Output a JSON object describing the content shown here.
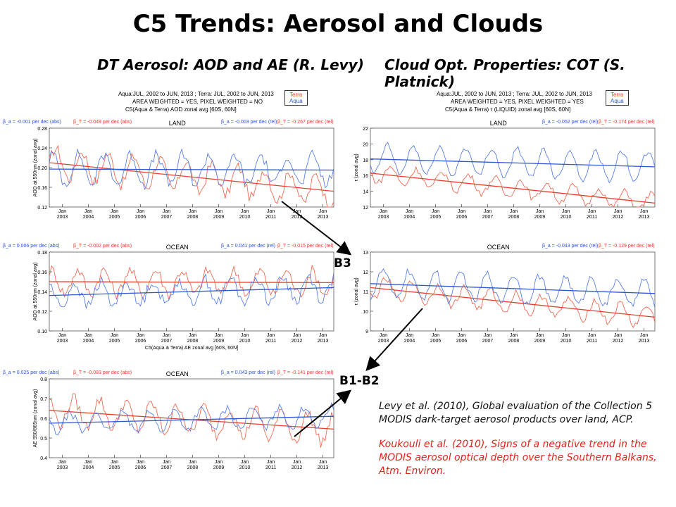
{
  "title": "C5 Trends: Aerosol and Clouds",
  "left_heading": "DT Aerosol: AOD and AE (R. Levy)",
  "right_heading": "Cloud Opt. Properties: COT (S. Platnick)",
  "left_header": {
    "line1": "Aqua:JUL, 2002 to JUN, 2013 ; Terra: JUL, 2002 to JUN, 2013",
    "line2": "AREA WEIGHTED = YES, PIXEL WEIGHTED = NO",
    "line3": "C5(Aqua & Terra) AOD zonal avg [60S, 60N]"
  },
  "right_header": {
    "line1": "Aqua:JUL, 2002 to JUN, 2013 ; Terra: JUL, 2002 to JUN, 2013",
    "line2": "AREA WEIGHTED = YES, PIXEL WEIGHTED = YES",
    "line3": "C5(Aqua & Terra) τ (LIQUID) zonal avg [60S, 60N]"
  },
  "legend": {
    "terra": "Terra",
    "aqua": "Aqua"
  },
  "annotations": {
    "b3": "B3",
    "b1b2": "B1-B2"
  },
  "references": {
    "ref1": "Levy et al. (2010), Global evaluation of the Collection 5 MODIS dark-target aerosol products over land, ACP.",
    "ref2": "Koukouli et al. (2010), Signs of a negative trend in the MODIS aerosol optical depth over the Southern Balkans, Atm. Environ."
  },
  "colors": {
    "terra": "#f06a52",
    "aqua": "#5b7fe8",
    "terra_trend": "#e8402c",
    "aqua_trend": "#2b56d6"
  },
  "chart_data": [
    {
      "id": "aod-land",
      "type": "line",
      "panel_label": "LAND",
      "ylabel": "AOD at 550nm (zonal avg)",
      "ylim": [
        0.12,
        0.28
      ],
      "yticks": [
        "0.12",
        "0.16",
        "0.20",
        "0.24",
        "0.28"
      ],
      "xticks": [
        "Jan 2003",
        "Jan 2004",
        "Jan 2005",
        "Jan 2006",
        "Jan 2007",
        "Jan 2008",
        "Jan 2009",
        "Jan 2010",
        "Jan 2011",
        "Jan 2012",
        "Jan 2013"
      ],
      "stats": {
        "b_abs": "β_a = -0.001 per dec (abs)",
        "t_abs": "β_T = -0.049 per dec (abs)",
        "a_rel": "β_a = -0.003 per dec (rel)",
        "t_rel": "β_T = -0.267 per dec (rel)"
      },
      "series": [
        {
          "name": "Terra",
          "mean": 0.185,
          "trend": [
            0.21,
            0.152
          ],
          "amp": 0.03,
          "noise": 0.012
        },
        {
          "name": "Aqua",
          "mean": 0.195,
          "trend": [
            0.197,
            0.195
          ],
          "amp": 0.03,
          "noise": 0.012
        }
      ]
    },
    {
      "id": "aod-ocean",
      "type": "line",
      "panel_label": "OCEAN",
      "ylabel": "AOD at 550nm (zonal avg)",
      "ylim": [
        0.1,
        0.18
      ],
      "yticks": [
        "0.10",
        "0.12",
        "0.14",
        "0.16",
        "0.18"
      ],
      "xticks": [
        "Jan 2003",
        "Jan 2004",
        "Jan 2005",
        "Jan 2006",
        "Jan 2007",
        "Jan 2008",
        "Jan 2009",
        "Jan 2010",
        "Jan 2011",
        "Jan 2012",
        "Jan 2013"
      ],
      "xlabel": "C5(Aqua & Terra) AE zonal avg [60S, 60N]",
      "stats": {
        "b_abs": "β_a = 0.006 per dec (abs)",
        "t_abs": "β_T = -0.002 per dec (abs)",
        "a_rel": "β_a = 0.041 per dec (rel)",
        "t_rel": "β_T = -0.015 per dec (rel)"
      },
      "series": [
        {
          "name": "Terra",
          "mean": 0.149,
          "trend": [
            0.15,
            0.149
          ],
          "amp": 0.012,
          "noise": 0.006
        },
        {
          "name": "Aqua",
          "mean": 0.139,
          "trend": [
            0.136,
            0.144
          ],
          "amp": 0.012,
          "noise": 0.006
        }
      ]
    },
    {
      "id": "ae-ocean",
      "type": "line",
      "panel_label": "OCEAN",
      "ylabel": "AE 550/865nm (zonal avg)",
      "ylim": [
        0.4,
        0.8
      ],
      "yticks": [
        "0.4",
        "0.5",
        "0.6",
        "0.7",
        "0.8"
      ],
      "xticks": [
        "Jan 2003",
        "Jan 2004",
        "Jan 2005",
        "Jan 2006",
        "Jan 2007",
        "Jan 2008",
        "Jan 2009",
        "Jan 2010",
        "Jan 2011",
        "Jan 2012",
        "Jan 2013"
      ],
      "stats": {
        "b_abs": "β_a = 0.025 per dec (abs)",
        "t_abs": "β_T = -0.083 per dec (abs)",
        "a_rel": "β_a = 0.043 per dec (rel)",
        "t_rel": "β_T = -0.141 per dec (rel)"
      },
      "series": [
        {
          "name": "Terra",
          "mean": 0.6,
          "trend": [
            0.64,
            0.545
          ],
          "amp": 0.07,
          "noise": 0.03
        },
        {
          "name": "Aqua",
          "mean": 0.6,
          "trend": [
            0.575,
            0.61
          ],
          "amp": 0.05,
          "noise": 0.02
        }
      ]
    },
    {
      "id": "cot-land",
      "type": "line",
      "panel_label": "LAND",
      "ylabel": "τ (zonal avg)",
      "ylim": [
        12,
        22
      ],
      "yticks": [
        "12",
        "14",
        "16",
        "18",
        "20",
        "22"
      ],
      "xticks": [
        "Jan 2003",
        "Jan 2004",
        "Jan 2005",
        "Jan 2006",
        "Jan 2007",
        "Jan 2008",
        "Jan 2009",
        "Jan 2010",
        "Jan 2011",
        "Jan 2012",
        "Jan 2013"
      ],
      "stats": {
        "a_rel": "β_a = -0.052 per dec (rel)",
        "t_rel": "β_T = -0.174 per dec (rel)"
      },
      "series": [
        {
          "name": "Terra",
          "mean": 14.5,
          "trend": [
            16.3,
            12.5
          ],
          "amp": 1.1,
          "noise": 0.4
        },
        {
          "name": "Aqua",
          "mean": 17.5,
          "trend": [
            18.1,
            17.1
          ],
          "amp": 1.8,
          "noise": 0.4
        }
      ]
    },
    {
      "id": "cot-ocean",
      "type": "line",
      "panel_label": "OCEAN",
      "ylabel": "τ (zonal avg)",
      "ylim": [
        9,
        13
      ],
      "yticks": [
        "9",
        "10",
        "11",
        "12",
        "13"
      ],
      "xticks": [
        "Jan 2003",
        "Jan 2004",
        "Jan 2005",
        "Jan 2006",
        "Jan 2007",
        "Jan 2008",
        "Jan 2009",
        "Jan 2010",
        "Jan 2011",
        "Jan 2012",
        "Jan 2013"
      ],
      "stats": {
        "a_rel": "β_a = -0.043 per dec (rel)",
        "t_rel": "β_T = -0.129 per dec (rel)"
      },
      "series": [
        {
          "name": "Terra",
          "mean": 10.4,
          "trend": [
            11.2,
            9.7
          ],
          "amp": 0.5,
          "noise": 0.2
        },
        {
          "name": "Aqua",
          "mean": 11.0,
          "trend": [
            11.4,
            10.9
          ],
          "amp": 0.7,
          "noise": 0.2
        }
      ]
    }
  ]
}
